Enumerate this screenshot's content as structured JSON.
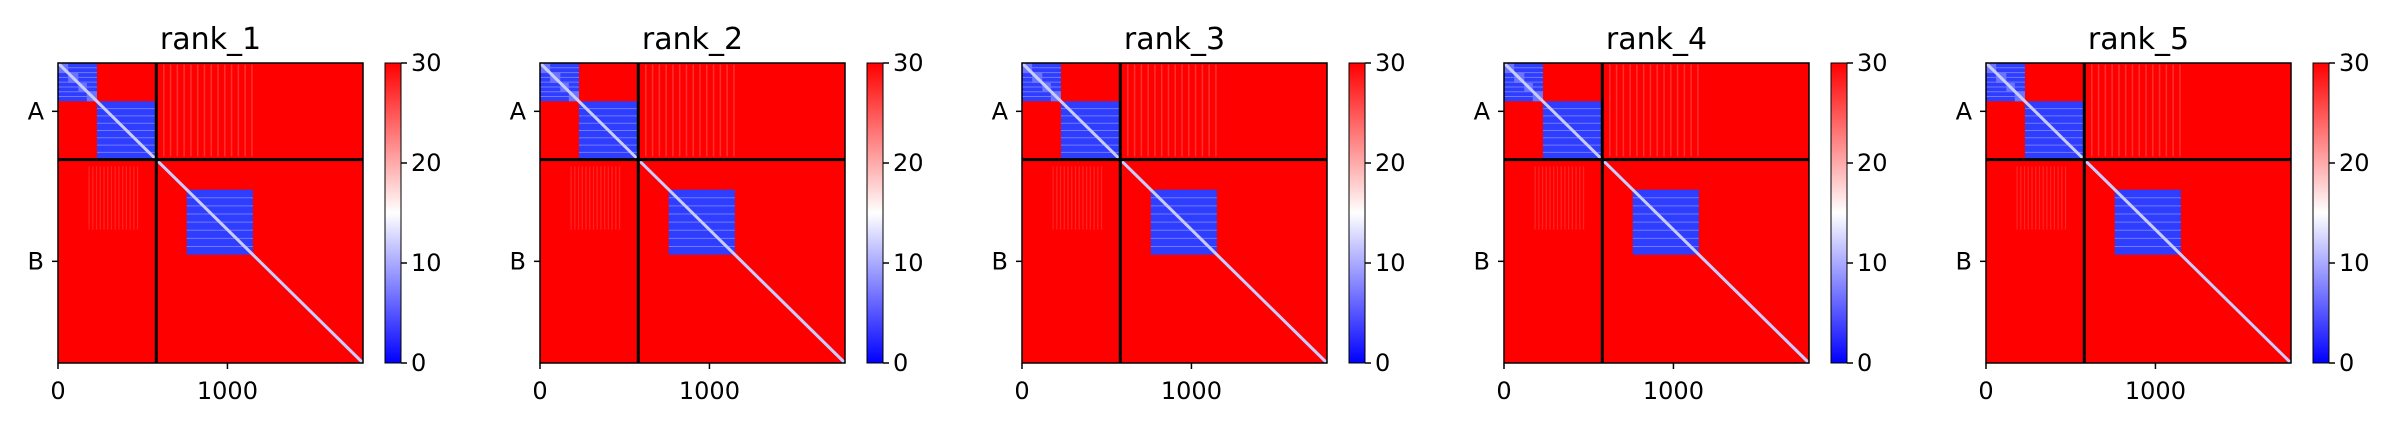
{
  "chart_data": {
    "type": "heatmap",
    "panels": [
      {
        "title": "rank_1"
      },
      {
        "title": "rank_2"
      },
      {
        "title": "rank_3"
      },
      {
        "title": "rank_4"
      },
      {
        "title": "rank_5"
      }
    ],
    "xlim": [
      0,
      1800
    ],
    "x_ticks": [
      0,
      1000
    ],
    "x_tick_labels": [
      "0",
      "1000"
    ],
    "chain_boundary": 580,
    "chains": [
      {
        "label": "A",
        "start": 0,
        "end": 580
      },
      {
        "label": "B",
        "start": 580,
        "end": 1800
      }
    ],
    "colorbar": {
      "colormap": "bwr",
      "vmin": 0,
      "vmax": 30,
      "ticks": [
        0,
        10,
        20,
        30
      ],
      "tick_labels": [
        "0",
        "10",
        "20",
        "30"
      ]
    },
    "low_error_blocks": [
      {
        "start": 0,
        "end": 230
      },
      {
        "start": 230,
        "end": 580
      },
      {
        "start": 760,
        "end": 1150
      }
    ],
    "colors": {
      "low": "#0000ff",
      "mid": "#ffffff",
      "high": "#ff0000",
      "divider": "#000000"
    }
  }
}
